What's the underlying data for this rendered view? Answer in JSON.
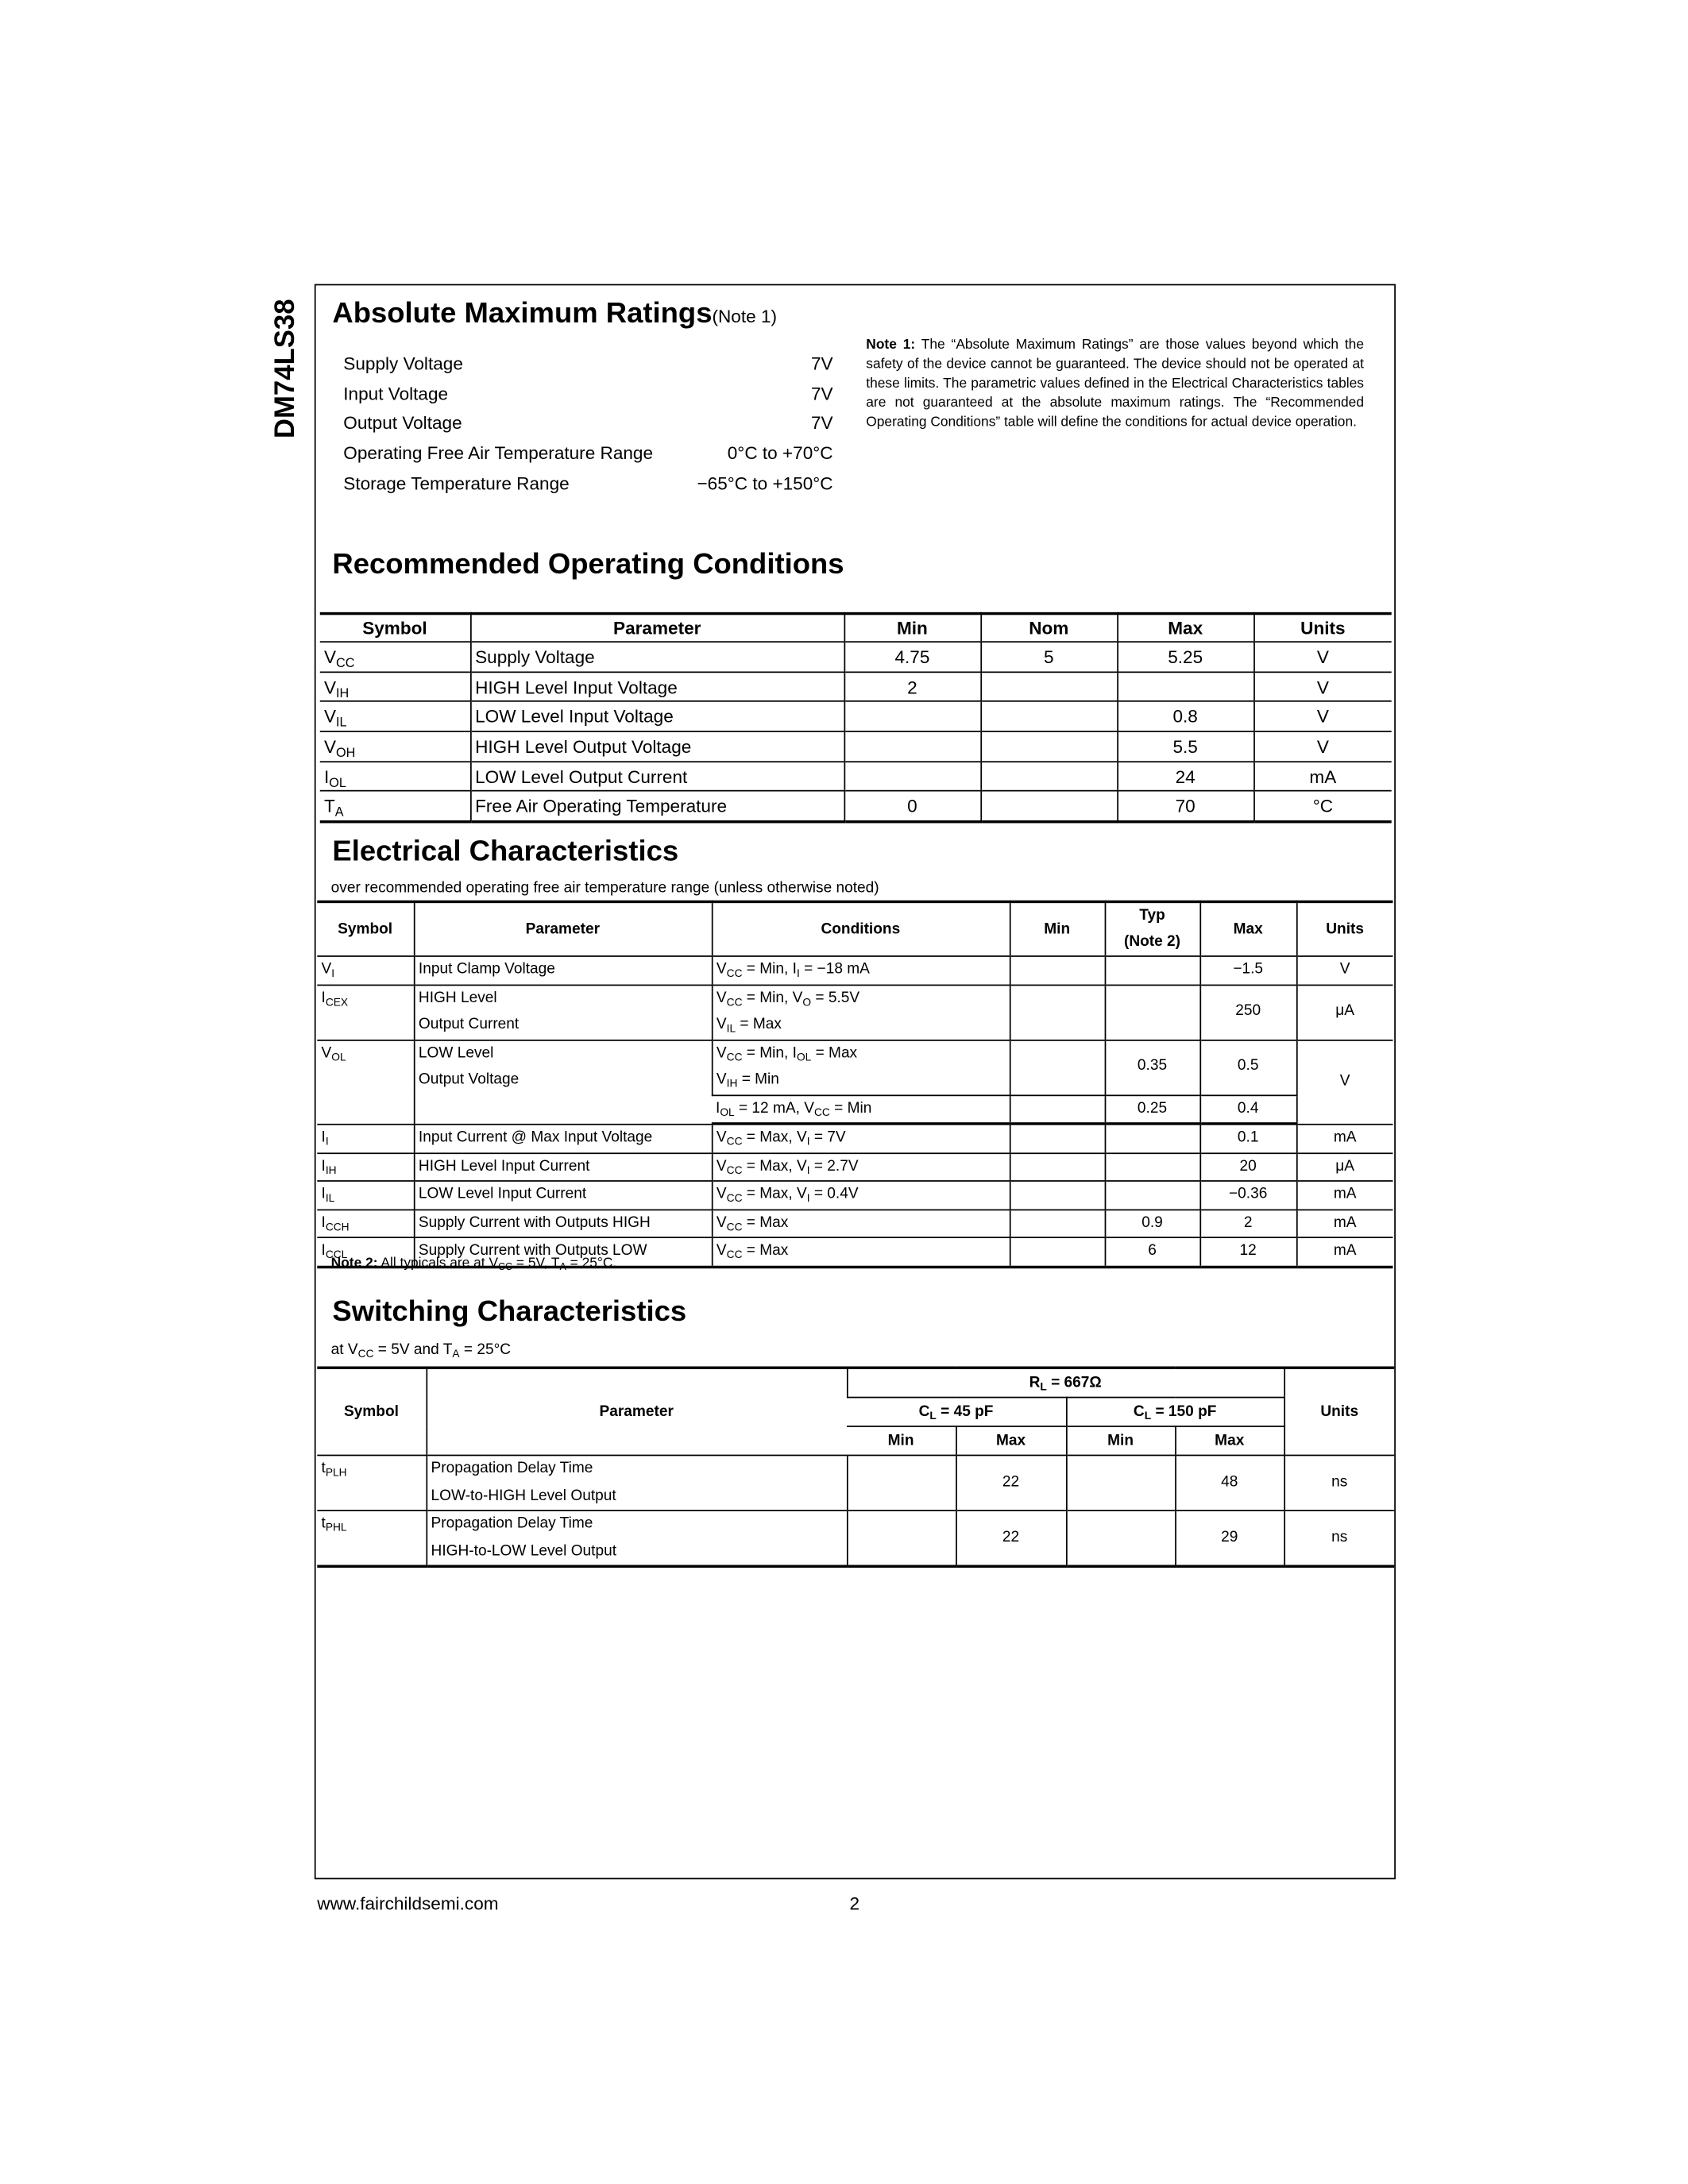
{
  "side_title": "DM74LS38",
  "abs_max": {
    "title": "Absolute Maximum Ratings",
    "note_ref": "(Note 1)",
    "rows": [
      [
        "Supply Voltage",
        "7V"
      ],
      [
        "Input Voltage",
        "7V"
      ],
      [
        "Output Voltage",
        "7V"
      ],
      [
        "Operating Free Air Temperature Range",
        "0°C to +70°C"
      ],
      [
        "Storage Temperature Range",
        "−65°C to +150°C"
      ]
    ]
  },
  "note1": [
    {
      "b": "Note 1:"
    },
    " The “Absolute Maximum Ratings” are those values beyond which the safety of the device cannot be guaranteed. The device should not be operated at these limits. The parametric values defined in the Electrical Characteristics tables are not guaranteed at the absolute maximum ratings. The “Recommended Operating Conditions” table will define the conditions for actual device operation."
  ],
  "rec_op": {
    "title": "Recommended Operating Conditions",
    "headers": [
      "Symbol",
      "Parameter",
      "Min",
      "Nom",
      "Max",
      "Units"
    ],
    "rows": [
      [
        [
          "V",
          {
            "sub": "CC"
          }
        ],
        "Supply Voltage",
        "4.75",
        "5",
        "5.25",
        "V"
      ],
      [
        [
          "V",
          {
            "sub": "IH"
          }
        ],
        "HIGH Level Input Voltage",
        "2",
        null,
        null,
        "V"
      ],
      [
        [
          "V",
          {
            "sub": "IL"
          }
        ],
        "LOW Level Input Voltage",
        null,
        null,
        "0.8",
        "V"
      ],
      [
        [
          "V",
          {
            "sub": "OH"
          }
        ],
        "HIGH Level Output Voltage",
        null,
        null,
        "5.5",
        "V"
      ],
      [
        [
          "I",
          {
            "sub": "OL"
          }
        ],
        "LOW Level Output Current",
        null,
        null,
        "24",
        "mA"
      ],
      [
        [
          "T",
          {
            "sub": "A"
          }
        ],
        "Free Air Operating Temperature",
        "0",
        null,
        "70",
        "°C"
      ]
    ]
  },
  "elec": {
    "title": "Electrical Characteristics",
    "subtitle": "over recommended operating free air temperature range (unless otherwise noted)",
    "headers": {
      "symbol": "Symbol",
      "parameter": "Parameter",
      "conditions": "Conditions",
      "min": "Min",
      "typ": {
        "lines": [
          "Typ",
          "(Note 2)"
        ]
      },
      "max": "Max",
      "units": "Units"
    },
    "rows": [
      {
        "symbol": [
          "V",
          {
            "sub": "I"
          }
        ],
        "parameter": "Input Clamp Voltage",
        "conditions": [
          "V",
          {
            "sub": "CC"
          },
          " = Min, I",
          {
            "sub": "I"
          },
          " = −18 mA"
        ],
        "max": "−1.5",
        "units": "V"
      },
      {
        "symbol": [
          "I",
          {
            "sub": "CEX"
          }
        ],
        "parameter": {
          "lines": [
            "HIGH Level",
            "Output Current"
          ]
        },
        "conditions": {
          "lines": [
            [
              "V",
              {
                "sub": "CC"
              },
              " = Min, V",
              {
                "sub": "O"
              },
              " = 5.5V"
            ],
            [
              "V",
              {
                "sub": "IL"
              },
              " = Max"
            ]
          ]
        },
        "max": "250",
        "units": "μA"
      },
      {
        "symbol": [
          "V",
          {
            "sub": "OL"
          }
        ],
        "parameter": {
          "lines": [
            "LOW Level",
            "Output Voltage"
          ]
        },
        "conditions": {
          "lines": [
            [
              "V",
              {
                "sub": "CC"
              },
              " = Min, I",
              {
                "sub": "OL"
              },
              " = Max"
            ],
            [
              "V",
              {
                "sub": "IH"
              },
              " = Min"
            ]
          ]
        },
        "typ": "0.35",
        "max": "0.5",
        "units": "V",
        "conditions_2": [
          "I",
          {
            "sub": "OL"
          },
          " = 12 mA, V",
          {
            "sub": "CC"
          },
          " = Min"
        ],
        "typ_2": "0.25",
        "max_2": "0.4"
      },
      {
        "symbol": [
          "I",
          {
            "sub": "I"
          }
        ],
        "parameter": "Input Current @ Max Input Voltage",
        "conditions": [
          "V",
          {
            "sub": "CC"
          },
          " = Max, V",
          {
            "sub": "I"
          },
          " = 7V"
        ],
        "max": "0.1",
        "units": "mA"
      },
      {
        "symbol": [
          "I",
          {
            "sub": "IH"
          }
        ],
        "parameter": "HIGH Level Input Current",
        "conditions": [
          "V",
          {
            "sub": "CC"
          },
          " = Max, V",
          {
            "sub": "I"
          },
          " = 2.7V"
        ],
        "max": "20",
        "units": "μA"
      },
      {
        "symbol": [
          "I",
          {
            "sub": "IL"
          }
        ],
        "parameter": "LOW Level Input Current",
        "conditions": [
          "V",
          {
            "sub": "CC"
          },
          " = Max, V",
          {
            "sub": "I"
          },
          " = 0.4V"
        ],
        "max": "−0.36",
        "units": "mA"
      },
      {
        "symbol": [
          "I",
          {
            "sub": "CCH"
          }
        ],
        "parameter": "Supply Current with Outputs HIGH",
        "conditions": [
          "V",
          {
            "sub": "CC"
          },
          " = Max"
        ],
        "typ": "0.9",
        "max": "2",
        "units": "mA"
      },
      {
        "symbol": [
          "I",
          {
            "sub": "CCL"
          }
        ],
        "parameter": "Supply Current with Outputs LOW",
        "conditions": [
          "V",
          {
            "sub": "CC"
          },
          " = Max"
        ],
        "typ": "6",
        "max": "12",
        "units": "mA"
      }
    ],
    "note2": [
      {
        "b": "Note 2:"
      },
      " All typicals are at V",
      {
        "sub": "CC"
      },
      " = 5V, T",
      {
        "sub": "A"
      },
      " = 25°C."
    ]
  },
  "switching": {
    "title": "Switching Characteristics",
    "subtitle": [
      "at V",
      {
        "sub": "CC"
      },
      " = 5V and T",
      {
        "sub": "A"
      },
      " = 25°C"
    ],
    "headers": {
      "symbol": "Symbol",
      "parameter": "Parameter",
      "load": [
        "R",
        {
          "sub": "L"
        },
        " = 667Ω"
      ],
      "cl_45": [
        "C",
        {
          "sub": "L"
        },
        " = 45 pF"
      ],
      "cl_150": [
        "C",
        {
          "sub": "L"
        },
        " = 150 pF"
      ],
      "min_45": "Min",
      "max_45": "Max",
      "min_150": "Min",
      "max_150": "Max",
      "units": "Units"
    },
    "rows": [
      {
        "symbol": [
          "t",
          {
            "sub": "PLH"
          }
        ],
        "parameter": {
          "lines": [
            "Propagation Delay Time",
            "LOW-to-HIGH Level Output"
          ]
        },
        "max_45": "22",
        "max_150": "48",
        "units": "ns"
      },
      {
        "symbol": [
          "t",
          {
            "sub": "PHL"
          }
        ],
        "parameter": {
          "lines": [
            "Propagation Delay Time",
            "HIGH-to-LOW Level Output"
          ]
        },
        "max_45": "22",
        "max_150": "29",
        "units": "ns"
      }
    ]
  },
  "footer": {
    "url": "www.fairchildsemi.com",
    "page": "2"
  }
}
